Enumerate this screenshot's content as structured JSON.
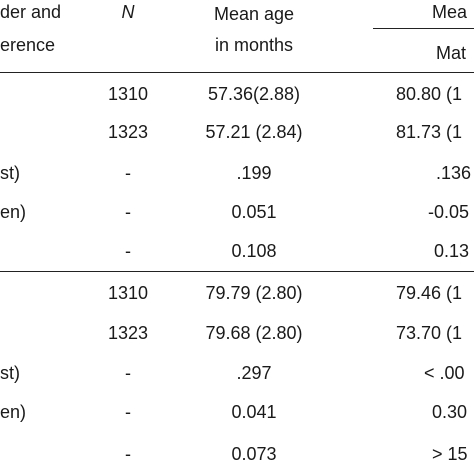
{
  "header": {
    "col0_line1": "der and",
    "col0_line2": "erence",
    "col_n": "N",
    "col_age_line1": "Mean age",
    "col_age_line2": "in months",
    "col_mean": "Mea",
    "col_mean_sub": "Mat"
  },
  "rows": [
    {
      "label": "",
      "n": "1310",
      "age": "57.36(2.88)",
      "mean": "80.80 (1"
    },
    {
      "label": "",
      "n": "1323",
      "age": "57.21 (2.84)",
      "mean": "81.73 (1"
    },
    {
      "label": "st)",
      "n": "-",
      "age": ".199",
      "mean": ".136"
    },
    {
      "label": "en)",
      "n": "-",
      "age": "0.051",
      "mean": "-0.05"
    },
    {
      "label": "",
      "n": "-",
      "age": "0.108",
      "mean": "0.13"
    },
    {
      "label": "",
      "n": "1310",
      "age": "79.79 (2.80)",
      "mean": "79.46 (1"
    },
    {
      "label": "",
      "n": "1323",
      "age": "79.68 (2.80)",
      "mean": "73.70 (1"
    },
    {
      "label": "st)",
      "n": "-",
      "age": ".297",
      "mean": "< .00"
    },
    {
      "label": "en)",
      "n": "-",
      "age": "0.041",
      "mean": "0.30"
    },
    {
      "label": "",
      "n": "-",
      "age": "0.073",
      "mean": "> 15"
    }
  ]
}
